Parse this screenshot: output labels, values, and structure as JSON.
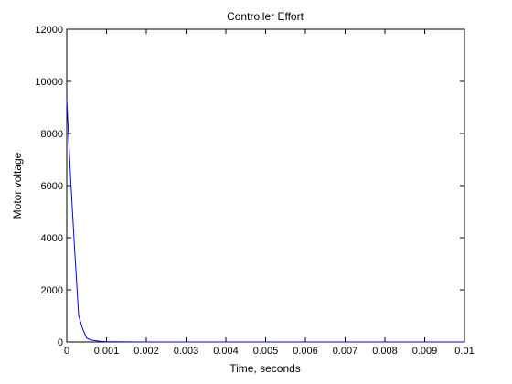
{
  "chart_data": {
    "type": "line",
    "title": "Controller Effort",
    "xlabel": "Time, seconds",
    "ylabel": "Motor voltage",
    "xlim": [
      0,
      0.01
    ],
    "ylim": [
      0,
      12000
    ],
    "grid": false,
    "x_ticks": [
      0,
      0.001,
      0.002,
      0.003,
      0.004,
      0.005,
      0.006,
      0.007,
      0.008,
      0.009,
      0.01
    ],
    "x_tick_labels": [
      "0",
      "0.001",
      "0.002",
      "0.003",
      "0.004",
      "0.005",
      "0.006",
      "0.007",
      "0.008",
      "0.009",
      "0.01"
    ],
    "y_ticks": [
      0,
      2000,
      4000,
      6000,
      8000,
      10000,
      12000
    ],
    "y_tick_labels": [
      "0",
      "2000",
      "4000",
      "6000",
      "8000",
      "10000",
      "12000"
    ],
    "series": [
      {
        "color": "#0000ff",
        "x": [
          0,
          0.0001,
          0.0002,
          0.0003,
          0.0004,
          0.0005,
          0.0006,
          0.0008,
          0.001,
          0.002,
          0.004,
          0.006,
          0.008,
          0.01
        ],
        "y": [
          9300,
          6200,
          3500,
          1000,
          500,
          150,
          80,
          30,
          10,
          0,
          0,
          0,
          0,
          0
        ]
      }
    ]
  }
}
